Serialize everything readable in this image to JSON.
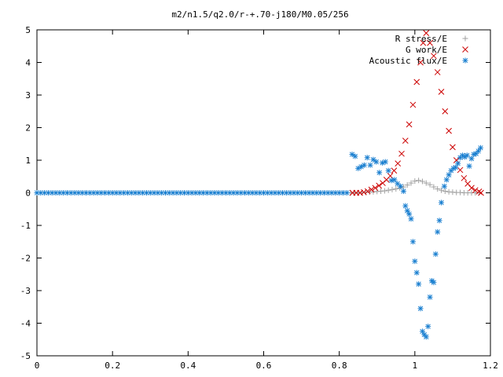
{
  "chart_data": {
    "type": "scatter",
    "title": "m2/n1.5/q2.0/r-+.70-j180/M0.05/256",
    "xlabel": "",
    "ylabel": "",
    "xlim": [
      0,
      1.2
    ],
    "ylim": [
      -5,
      5
    ],
    "xticks": [
      "0",
      "0.2",
      "0.4",
      "0.6",
      "0.8",
      "1",
      "1.2"
    ],
    "yticks": [
      "5",
      "4",
      "3",
      "2",
      "1",
      "0",
      "-1",
      "-2",
      "-3",
      "-4",
      "-5"
    ],
    "grid": false,
    "legend_position": "top-right",
    "series": [
      {
        "name": "R stress/E",
        "marker": "plus",
        "color": "#a0a0a0",
        "points": [
          [
            0.83,
            0
          ],
          [
            0.84,
            0
          ],
          [
            0.85,
            0
          ],
          [
            0.86,
            0.01
          ],
          [
            0.87,
            0.01
          ],
          [
            0.88,
            0.02
          ],
          [
            0.89,
            0.03
          ],
          [
            0.9,
            0.04
          ],
          [
            0.91,
            0.05
          ],
          [
            0.92,
            0.06
          ],
          [
            0.93,
            0.08
          ],
          [
            0.94,
            0.1
          ],
          [
            0.95,
            0.12
          ],
          [
            0.96,
            0.15
          ],
          [
            0.97,
            0.18
          ],
          [
            0.98,
            0.24
          ],
          [
            0.99,
            0.3
          ],
          [
            1.0,
            0.36
          ],
          [
            1.01,
            0.38
          ],
          [
            1.02,
            0.35
          ],
          [
            1.03,
            0.3
          ],
          [
            1.04,
            0.25
          ],
          [
            1.05,
            0.18
          ],
          [
            1.06,
            0.12
          ],
          [
            1.07,
            0.08
          ],
          [
            1.08,
            0.05
          ],
          [
            1.09,
            0.03
          ],
          [
            1.1,
            0.02
          ],
          [
            1.11,
            0.01
          ],
          [
            1.12,
            0.01
          ],
          [
            1.13,
            0
          ],
          [
            1.14,
            0
          ],
          [
            1.15,
            0
          ],
          [
            1.16,
            0
          ],
          [
            1.17,
            0
          ]
        ]
      },
      {
        "name": "G work/E",
        "marker": "cross",
        "color": "#cc0000",
        "points": [
          [
            0.835,
            0
          ],
          [
            0.845,
            0
          ],
          [
            0.855,
            0
          ],
          [
            0.865,
            0.02
          ],
          [
            0.875,
            0.05
          ],
          [
            0.885,
            0.1
          ],
          [
            0.895,
            0.15
          ],
          [
            0.905,
            0.22
          ],
          [
            0.915,
            0.3
          ],
          [
            0.925,
            0.4
          ],
          [
            0.935,
            0.52
          ],
          [
            0.945,
            0.68
          ],
          [
            0.955,
            0.9
          ],
          [
            0.965,
            1.2
          ],
          [
            0.975,
            1.6
          ],
          [
            0.985,
            2.1
          ],
          [
            0.995,
            2.7
          ],
          [
            1.005,
            3.4
          ],
          [
            1.015,
            4.0
          ],
          [
            1.022,
            4.6
          ],
          [
            1.03,
            4.9
          ],
          [
            1.04,
            4.6
          ],
          [
            1.05,
            4.2
          ],
          [
            1.06,
            3.7
          ],
          [
            1.07,
            3.1
          ],
          [
            1.08,
            2.5
          ],
          [
            1.09,
            1.9
          ],
          [
            1.1,
            1.4
          ],
          [
            1.11,
            1.0
          ],
          [
            1.12,
            0.7
          ],
          [
            1.13,
            0.45
          ],
          [
            1.14,
            0.28
          ],
          [
            1.15,
            0.15
          ],
          [
            1.16,
            0.08
          ],
          [
            1.17,
            0.04
          ],
          [
            1.175,
            0
          ]
        ]
      },
      {
        "name": "Acoustic flux/E",
        "marker": "star",
        "color": "#1a7fd0",
        "points": [
          [
            0.0,
            0
          ],
          [
            0.01,
            0
          ],
          [
            0.02,
            0
          ],
          [
            0.03,
            0
          ],
          [
            0.04,
            0
          ],
          [
            0.05,
            0
          ],
          [
            0.06,
            0
          ],
          [
            0.07,
            0
          ],
          [
            0.08,
            0
          ],
          [
            0.09,
            0
          ],
          [
            0.1,
            0
          ],
          [
            0.11,
            0
          ],
          [
            0.12,
            0
          ],
          [
            0.13,
            0
          ],
          [
            0.14,
            0
          ],
          [
            0.15,
            0
          ],
          [
            0.16,
            0
          ],
          [
            0.17,
            0
          ],
          [
            0.18,
            0
          ],
          [
            0.19,
            0
          ],
          [
            0.2,
            0
          ],
          [
            0.21,
            0
          ],
          [
            0.22,
            0
          ],
          [
            0.23,
            0
          ],
          [
            0.24,
            0
          ],
          [
            0.25,
            0
          ],
          [
            0.26,
            0
          ],
          [
            0.27,
            0
          ],
          [
            0.28,
            0
          ],
          [
            0.29,
            0
          ],
          [
            0.3,
            0
          ],
          [
            0.31,
            0
          ],
          [
            0.32,
            0
          ],
          [
            0.33,
            0
          ],
          [
            0.34,
            0
          ],
          [
            0.35,
            0
          ],
          [
            0.36,
            0
          ],
          [
            0.37,
            0
          ],
          [
            0.38,
            0
          ],
          [
            0.39,
            0
          ],
          [
            0.4,
            0
          ],
          [
            0.41,
            0
          ],
          [
            0.42,
            0
          ],
          [
            0.43,
            0
          ],
          [
            0.44,
            0
          ],
          [
            0.45,
            0
          ],
          [
            0.46,
            0
          ],
          [
            0.47,
            0
          ],
          [
            0.48,
            0
          ],
          [
            0.49,
            0
          ],
          [
            0.5,
            0
          ],
          [
            0.51,
            0
          ],
          [
            0.52,
            0
          ],
          [
            0.53,
            0
          ],
          [
            0.54,
            0
          ],
          [
            0.55,
            0
          ],
          [
            0.56,
            0
          ],
          [
            0.57,
            0
          ],
          [
            0.58,
            0
          ],
          [
            0.59,
            0
          ],
          [
            0.6,
            0
          ],
          [
            0.61,
            0
          ],
          [
            0.62,
            0
          ],
          [
            0.63,
            0
          ],
          [
            0.64,
            0
          ],
          [
            0.65,
            0
          ],
          [
            0.66,
            0
          ],
          [
            0.67,
            0
          ],
          [
            0.68,
            0
          ],
          [
            0.69,
            0
          ],
          [
            0.7,
            0
          ],
          [
            0.71,
            0
          ],
          [
            0.72,
            0
          ],
          [
            0.73,
            0
          ],
          [
            0.74,
            0
          ],
          [
            0.75,
            0
          ],
          [
            0.76,
            0
          ],
          [
            0.77,
            0
          ],
          [
            0.78,
            0
          ],
          [
            0.79,
            0
          ],
          [
            0.8,
            0
          ],
          [
            0.81,
            0
          ],
          [
            0.82,
            0
          ],
          [
            0.834,
            1.18
          ],
          [
            0.842,
            1.12
          ],
          [
            0.85,
            0.75
          ],
          [
            0.858,
            0.8
          ],
          [
            0.866,
            0.85
          ],
          [
            0.874,
            1.08
          ],
          [
            0.882,
            0.85
          ],
          [
            0.89,
            1.02
          ],
          [
            0.898,
            0.95
          ],
          [
            0.906,
            0.62
          ],
          [
            0.914,
            0.92
          ],
          [
            0.922,
            0.95
          ],
          [
            0.93,
            0.68
          ],
          [
            0.938,
            0.38
          ],
          [
            0.946,
            0.4
          ],
          [
            0.954,
            0.28
          ],
          [
            0.962,
            0.2
          ],
          [
            0.97,
            0.05
          ],
          [
            0.975,
            -0.4
          ],
          [
            0.98,
            -0.55
          ],
          [
            0.985,
            -0.65
          ],
          [
            0.99,
            -0.8
          ],
          [
            0.995,
            -1.5
          ],
          [
            1.0,
            -2.1
          ],
          [
            1.005,
            -2.45
          ],
          [
            1.01,
            -2.8
          ],
          [
            1.015,
            -3.55
          ],
          [
            1.02,
            -4.25
          ],
          [
            1.025,
            -4.35
          ],
          [
            1.03,
            -4.42
          ],
          [
            1.035,
            -4.1
          ],
          [
            1.04,
            -3.2
          ],
          [
            1.045,
            -2.7
          ],
          [
            1.05,
            -2.75
          ],
          [
            1.055,
            -1.88
          ],
          [
            1.06,
            -1.2
          ],
          [
            1.065,
            -0.85
          ],
          [
            1.07,
            -0.3
          ],
          [
            1.078,
            0.2
          ],
          [
            1.084,
            0.4
          ],
          [
            1.09,
            0.55
          ],
          [
            1.096,
            0.68
          ],
          [
            1.102,
            0.75
          ],
          [
            1.108,
            0.78
          ],
          [
            1.114,
            0.9
          ],
          [
            1.12,
            1.08
          ],
          [
            1.126,
            1.15
          ],
          [
            1.132,
            1.1
          ],
          [
            1.138,
            1.15
          ],
          [
            1.144,
            0.82
          ],
          [
            1.15,
            1.05
          ],
          [
            1.156,
            1.18
          ],
          [
            1.162,
            1.2
          ],
          [
            1.168,
            1.28
          ],
          [
            1.174,
            1.38
          ]
        ]
      }
    ]
  }
}
